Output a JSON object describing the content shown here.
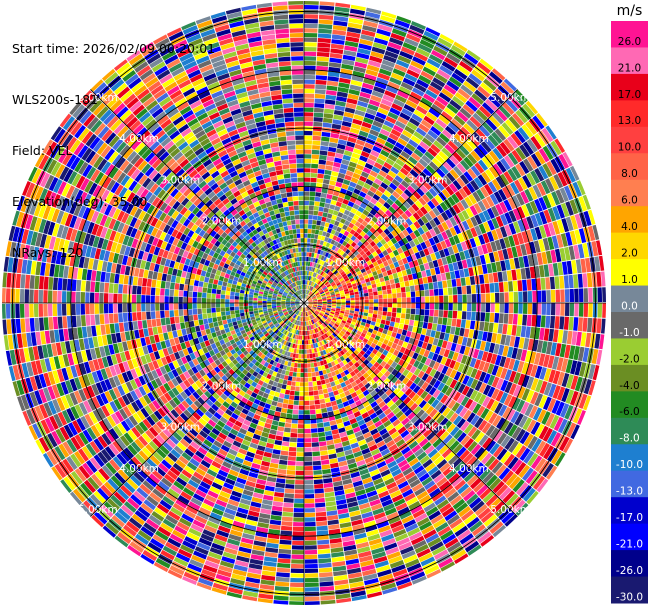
{
  "header": {
    "start_time": "Start time: 2026/02/09 00:20:01",
    "station": "WLS200s-181",
    "field": "Field: VEL",
    "elevation": "Elevation(deg): 35.00",
    "nrays": "NRays: 120"
  },
  "chart_data": {
    "type": "heatmap",
    "projection": "polar PPI",
    "field": "VEL",
    "elevation_deg": 35.0,
    "n_rays": 120,
    "range_rings_km": [
      1.0,
      2.0,
      3.0,
      4.0,
      5.0
    ],
    "range_ring_labels": [
      "1.00km",
      "2.00km",
      "3.00km",
      "4.00km",
      "5.00km"
    ],
    "near_field": {
      "extent_km": 1.8,
      "pattern": "dipole: positive (red/orange/yellow) to the east and south-east, negative (blue/green) to the west and north-west"
    },
    "far_field": "noise (random colors across full scale)",
    "colorbar": {
      "unit": "m/s",
      "tick_labels": [
        "26.0",
        "21.0",
        "17.0",
        "13.0",
        "10.0",
        "8.0",
        "6.0",
        "4.0",
        "2.0",
        "1.0",
        "0.0",
        "-1.0",
        "-2.0",
        "-4.0",
        "-6.0",
        "-8.0",
        "-10.0",
        "-13.0",
        "-17.0",
        "-21.0",
        "-26.0",
        "-30.0"
      ],
      "colors": [
        "#ff1493",
        "#ff69b4",
        "#e8001a",
        "#ff2a2a",
        "#ff4040",
        "#ff6347",
        "#ff7f50",
        "#ffa500",
        "#ffd700",
        "#ffff00",
        "#778899",
        "#696969",
        "#9acd32",
        "#6b8e23",
        "#228b22",
        "#2e8b57",
        "#1e7fd0",
        "#4169e1",
        "#0000cd",
        "#0000ff",
        "#00008b",
        "#191970"
      ]
    }
  }
}
